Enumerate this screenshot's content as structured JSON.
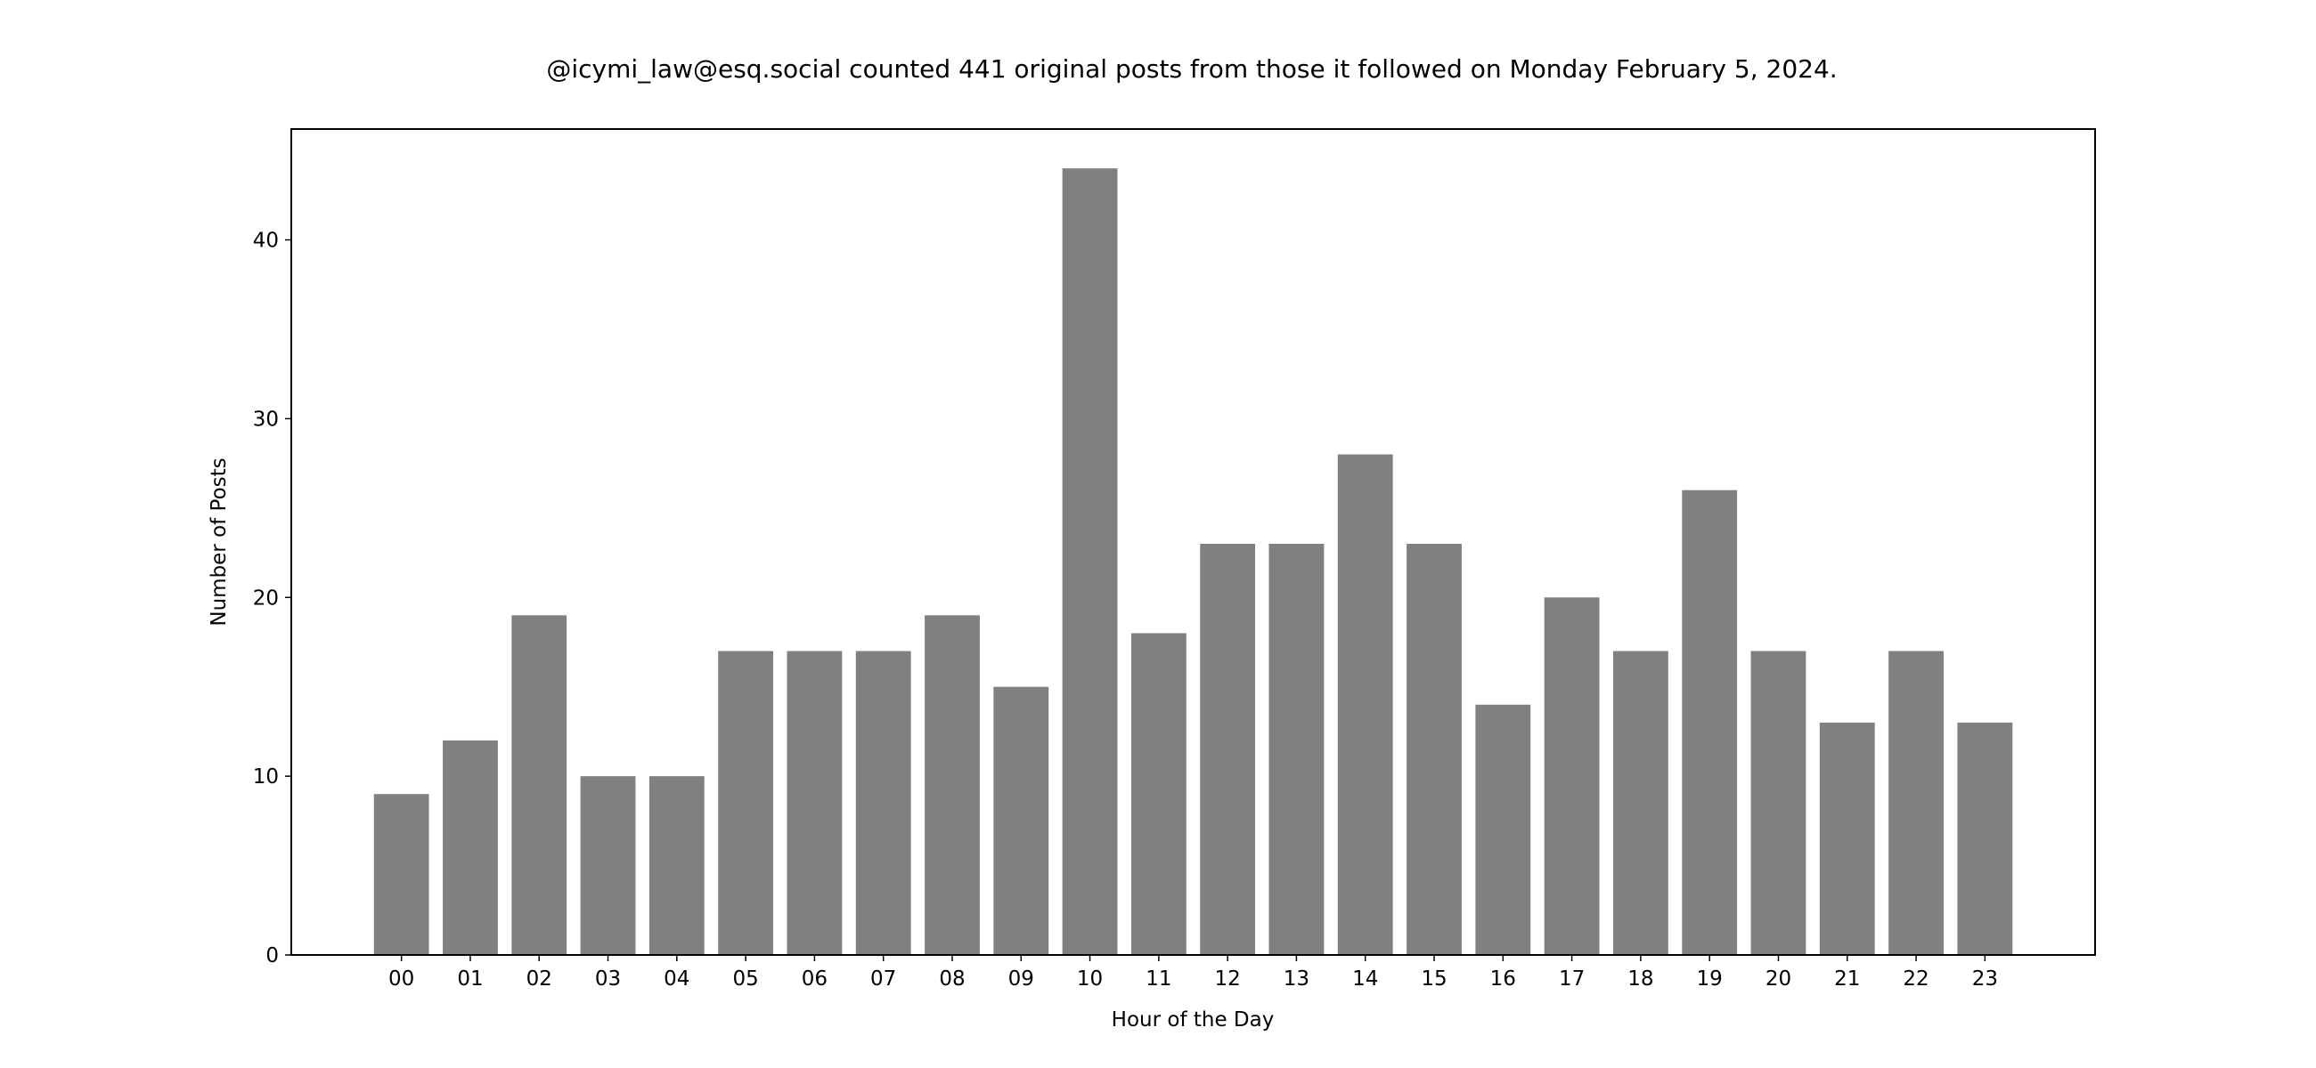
{
  "chart_data": {
    "type": "bar",
    "title": "@icymi_law@esq.social counted 441 original posts from those it followed on Monday February 5, 2024.",
    "xlabel": "Hour of the Day",
    "ylabel": "Number of Posts",
    "categories": [
      "00",
      "01",
      "02",
      "03",
      "04",
      "05",
      "06",
      "07",
      "08",
      "09",
      "10",
      "11",
      "12",
      "13",
      "14",
      "15",
      "16",
      "17",
      "18",
      "19",
      "20",
      "21",
      "22",
      "23"
    ],
    "values": [
      9,
      12,
      19,
      10,
      10,
      17,
      17,
      17,
      19,
      15,
      44,
      18,
      23,
      23,
      28,
      23,
      14,
      20,
      17,
      26,
      17,
      13,
      17,
      13
    ],
    "yticks": [
      0,
      10,
      20,
      30,
      40
    ],
    "ylim": [
      0,
      46.2
    ],
    "xlim": [
      -1.6,
      24.6
    ],
    "bar_color": "#808080",
    "grid": false,
    "legend": "none"
  }
}
